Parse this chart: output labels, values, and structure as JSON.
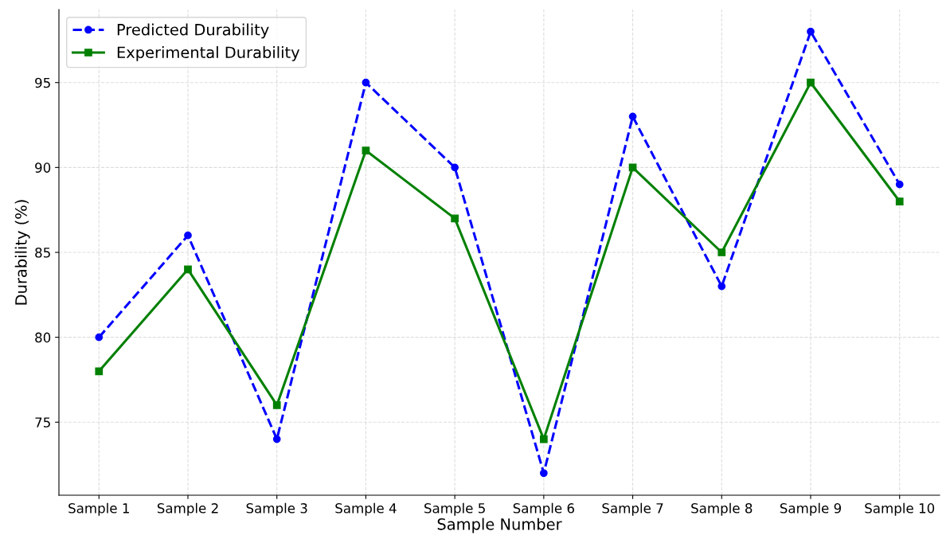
{
  "chart_data": {
    "type": "line",
    "xlabel": "Sample Number",
    "ylabel": "Durability (%)",
    "categories": [
      "Sample 1",
      "Sample 2",
      "Sample 3",
      "Sample 4",
      "Sample 5",
      "Sample 6",
      "Sample 7",
      "Sample 8",
      "Sample 9",
      "Sample 10"
    ],
    "series": [
      {
        "name": "Predicted Durability",
        "color": "#0000ff",
        "values": [
          80,
          86,
          74,
          95,
          90,
          72,
          93,
          83,
          98,
          89
        ],
        "marker": "circle",
        "line_style": "dashed"
      },
      {
        "name": "Experimental Durability",
        "color": "#008000",
        "values": [
          78,
          84,
          76,
          91,
          87,
          74,
          90,
          85,
          95,
          88
        ],
        "marker": "square",
        "line_style": "solid"
      }
    ],
    "ylim": [
      70.7,
      99.3
    ],
    "yticks": [
      75,
      80,
      85,
      90,
      95
    ],
    "grid": true,
    "legend": "top left"
  }
}
